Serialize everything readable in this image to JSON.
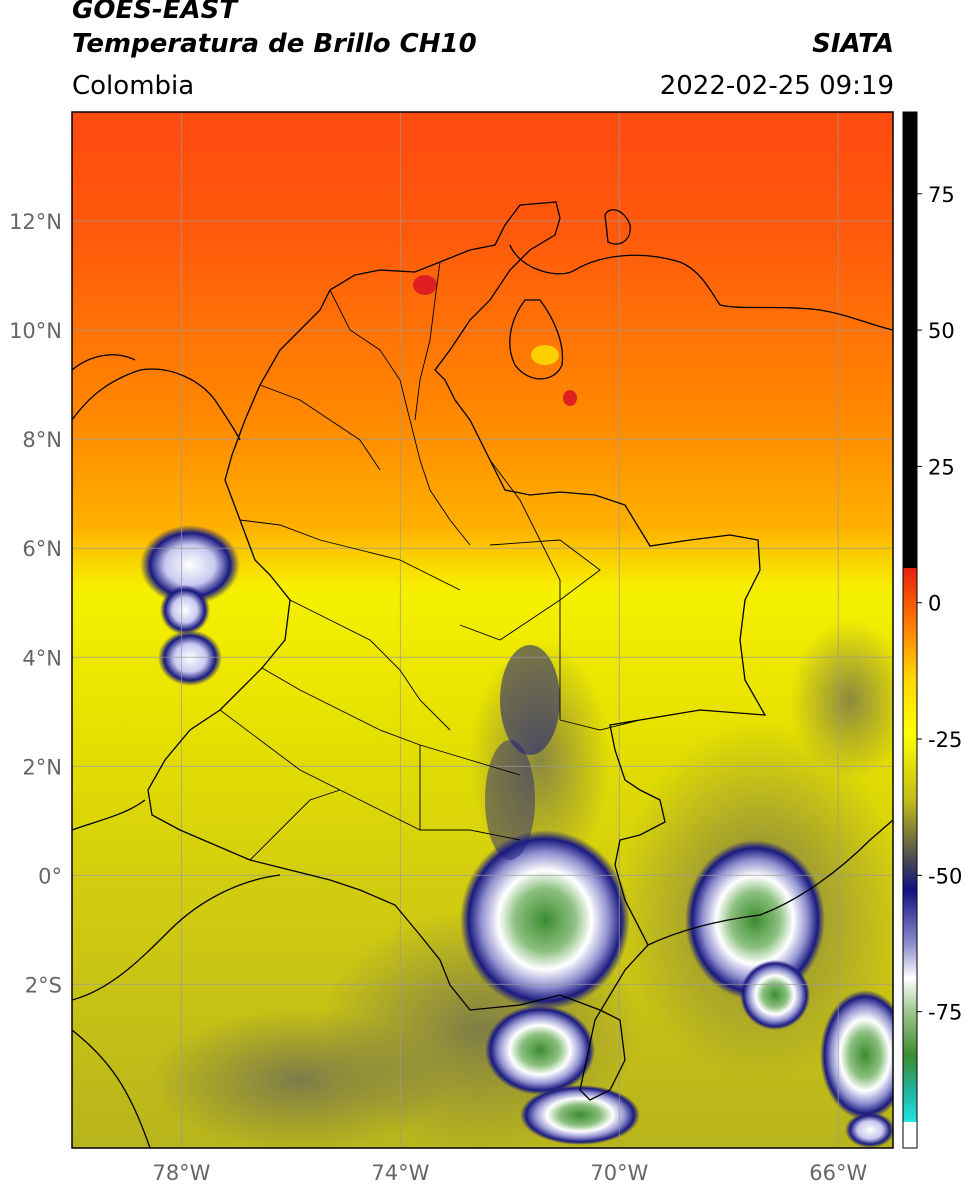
{
  "header": {
    "satellite": "GOES-EAST",
    "product": "Temperatura de Brillo CH10",
    "region": "Colombia",
    "organization": "SIATA",
    "datetime": "2022-02-25 09:19"
  },
  "axes": {
    "lat_labels": [
      "12°N",
      "10°N",
      "8°N",
      "6°N",
      "4°N",
      "2°N",
      "0°",
      "2°S"
    ],
    "lat_values": [
      12,
      10,
      8,
      6,
      4,
      2,
      0,
      -2
    ],
    "lon_labels": [
      "78°W",
      "74°W",
      "70°W",
      "66°W"
    ],
    "lon_values": [
      -78,
      -74,
      -70,
      -66
    ],
    "lon_range": [
      -80,
      -65
    ],
    "lat_range": [
      -5,
      14
    ],
    "grid": true
  },
  "colorbar": {
    "labels": [
      "75",
      "50",
      "25",
      "0",
      "-25",
      "-50",
      "-75"
    ],
    "values": [
      75,
      50,
      25,
      0,
      -25,
      -50,
      -75
    ],
    "range": [
      -100,
      90
    ]
  },
  "colors": {
    "warm_red": "#ff4a10",
    "orange": "#ff8a00",
    "yellow": "#f6f000",
    "olive": "#c4c010",
    "dark_blue": "#1a1a80",
    "white": "#ffffff",
    "green": "#3c8c30",
    "teal": "#20c8b8",
    "black": "#000000"
  }
}
